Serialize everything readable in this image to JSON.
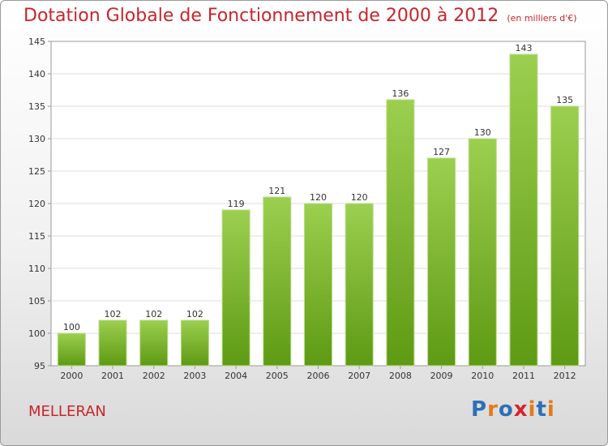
{
  "title": "Dotation Globale de Fonctionnement de 2000 à 2012",
  "subtitle": "(en milliers d'€)",
  "commune": "MELLERAN",
  "logo": {
    "letters": [
      "P",
      "r",
      "o",
      "x",
      "i",
      "t",
      "i"
    ],
    "colors": [
      "#2e6fb7",
      "#e27b1a",
      "#2e6fb7",
      "#d4262a",
      "#e27b1a",
      "#2e6fb7",
      "#e27b1a"
    ]
  },
  "chart_data": {
    "type": "bar",
    "title": "Dotation Globale de Fonctionnement de 2000 à 2012",
    "subtitle": "(en milliers d'€)",
    "categories": [
      "2000",
      "2001",
      "2002",
      "2003",
      "2004",
      "2005",
      "2006",
      "2007",
      "2008",
      "2009",
      "2010",
      "2011",
      "2012"
    ],
    "values": [
      100,
      102,
      102,
      102,
      119,
      121,
      120,
      120,
      136,
      127,
      130,
      143,
      135
    ],
    "ylim": [
      95,
      145
    ],
    "yticks": [
      95,
      100,
      105,
      110,
      115,
      120,
      125,
      130,
      135,
      140,
      145
    ],
    "grid": true,
    "bar_color": "#7dbb2f"
  }
}
